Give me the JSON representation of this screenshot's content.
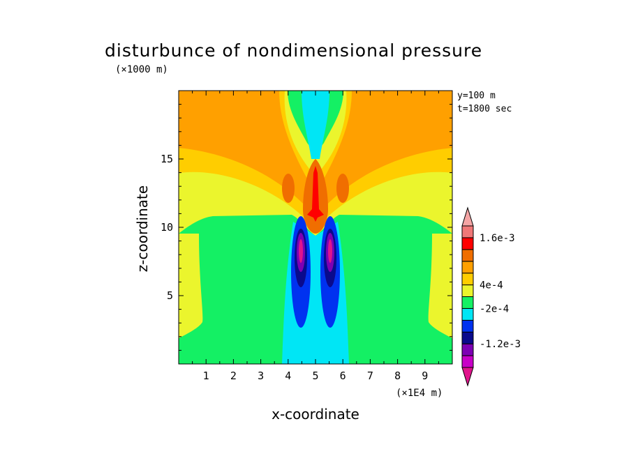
{
  "title": "disturbunce of nondimensional pressure",
  "y_unit": "(×1000 m)",
  "x_unit": "(×1E4 m)",
  "info": [
    "y=100 m",
    "t=1800 sec"
  ],
  "chart_data": {
    "type": "heatmap",
    "title": "disturbunce of nondimensional pressure",
    "xlabel": "x-coordinate",
    "ylabel": "z-coordinate",
    "xlim": [
      0,
      10
    ],
    "ylim": [
      0,
      20
    ],
    "x_ticks": [
      "1",
      "2",
      "3",
      "4",
      "5",
      "6",
      "7",
      "8",
      "9"
    ],
    "y_ticks": [
      "5",
      "10",
      "15"
    ],
    "colorbar": {
      "levels": [
        {
          "color": "#e0148c"
        },
        {
          "color": "#c800c8"
        },
        {
          "color": "#7d00b4"
        },
        {
          "color": "#0a0a8c"
        },
        {
          "color": "#0032f0"
        },
        {
          "color": "#00e6f5"
        },
        {
          "color": "#14f064"
        },
        {
          "color": "#ebf52d"
        },
        {
          "color": "#ffcd00"
        },
        {
          "color": "#ffa000"
        },
        {
          "color": "#f06e00"
        },
        {
          "color": "#ff0000"
        },
        {
          "color": "#f07878"
        },
        {
          "color": "#f5a5a5"
        }
      ],
      "labels": [
        "1.6e-3",
        "4e-4",
        "-2e-4",
        "-1.2e-3"
      ]
    }
  }
}
